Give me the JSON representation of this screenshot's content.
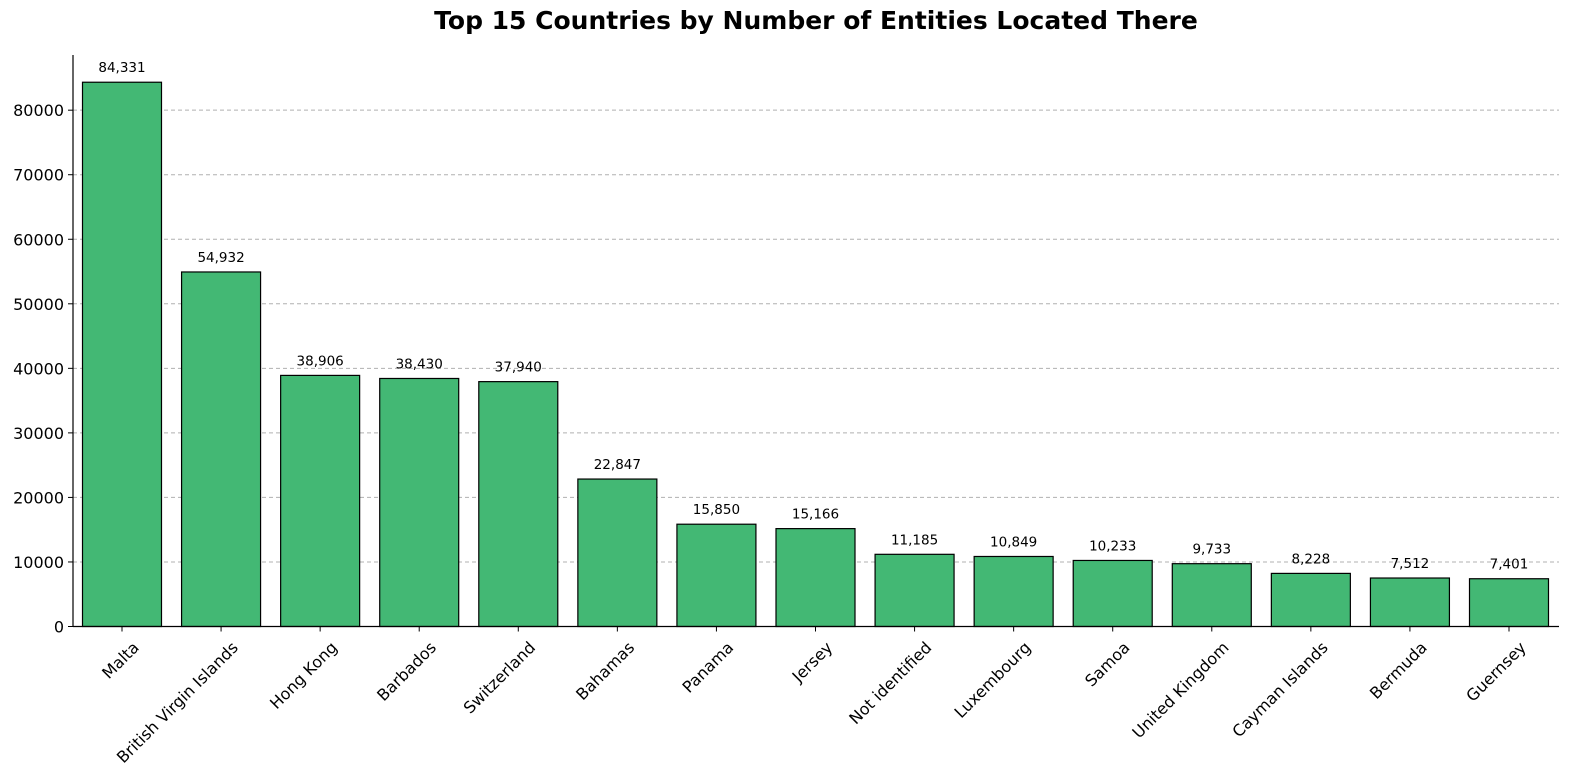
{
  "chart_data": {
    "type": "bar",
    "title": "Top 15 Countries by Number of Entities Located There",
    "xlabel": "",
    "ylabel": "",
    "categories": [
      "Malta",
      "British Virgin Islands",
      "Hong Kong",
      "Barbados",
      "Switzerland",
      "Bahamas",
      "Panama",
      "Jersey",
      "Not identified",
      "Luxembourg",
      "Samoa",
      "United Kingdom",
      "Cayman Islands",
      "Bermuda",
      "Guernsey"
    ],
    "values": [
      84331,
      54932,
      38906,
      38430,
      37940,
      22847,
      15850,
      15166,
      11185,
      10849,
      10233,
      9733,
      8228,
      7512,
      7401
    ],
    "value_labels": [
      "84,331",
      "54,932",
      "38,906",
      "38,430",
      "37,940",
      "22,847",
      "15,850",
      "15,166",
      "11,185",
      "10,849",
      "10,233",
      "9,733",
      "8,228",
      "7,512",
      "7,401"
    ],
    "y_ticks": [
      0,
      10000,
      20000,
      30000,
      40000,
      50000,
      60000,
      70000,
      80000
    ],
    "ylim": [
      0,
      88550
    ],
    "grid": "horizontal dashed",
    "legend": "none",
    "bar_color": "#43b874",
    "bar_edge_color": "#000000",
    "grid_color": "#b0b0b0"
  }
}
